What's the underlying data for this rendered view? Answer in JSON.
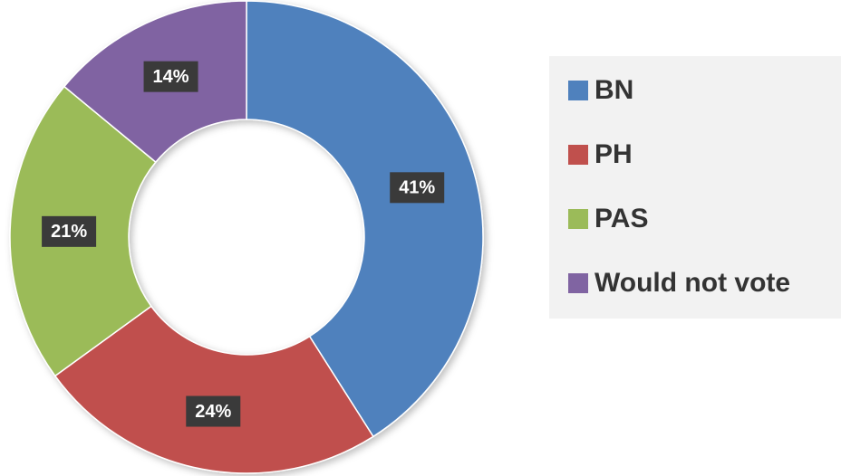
{
  "chart_data": {
    "type": "donut",
    "categories": [
      "BN",
      "PH",
      "PAS",
      "Would not vote"
    ],
    "values": [
      41,
      24,
      21,
      14
    ],
    "value_labels": [
      "41%",
      "24%",
      "21%",
      "14%"
    ],
    "colors": [
      "#4f81bd",
      "#c0504d",
      "#9bbb59",
      "#8064a2"
    ],
    "legend": "right"
  }
}
